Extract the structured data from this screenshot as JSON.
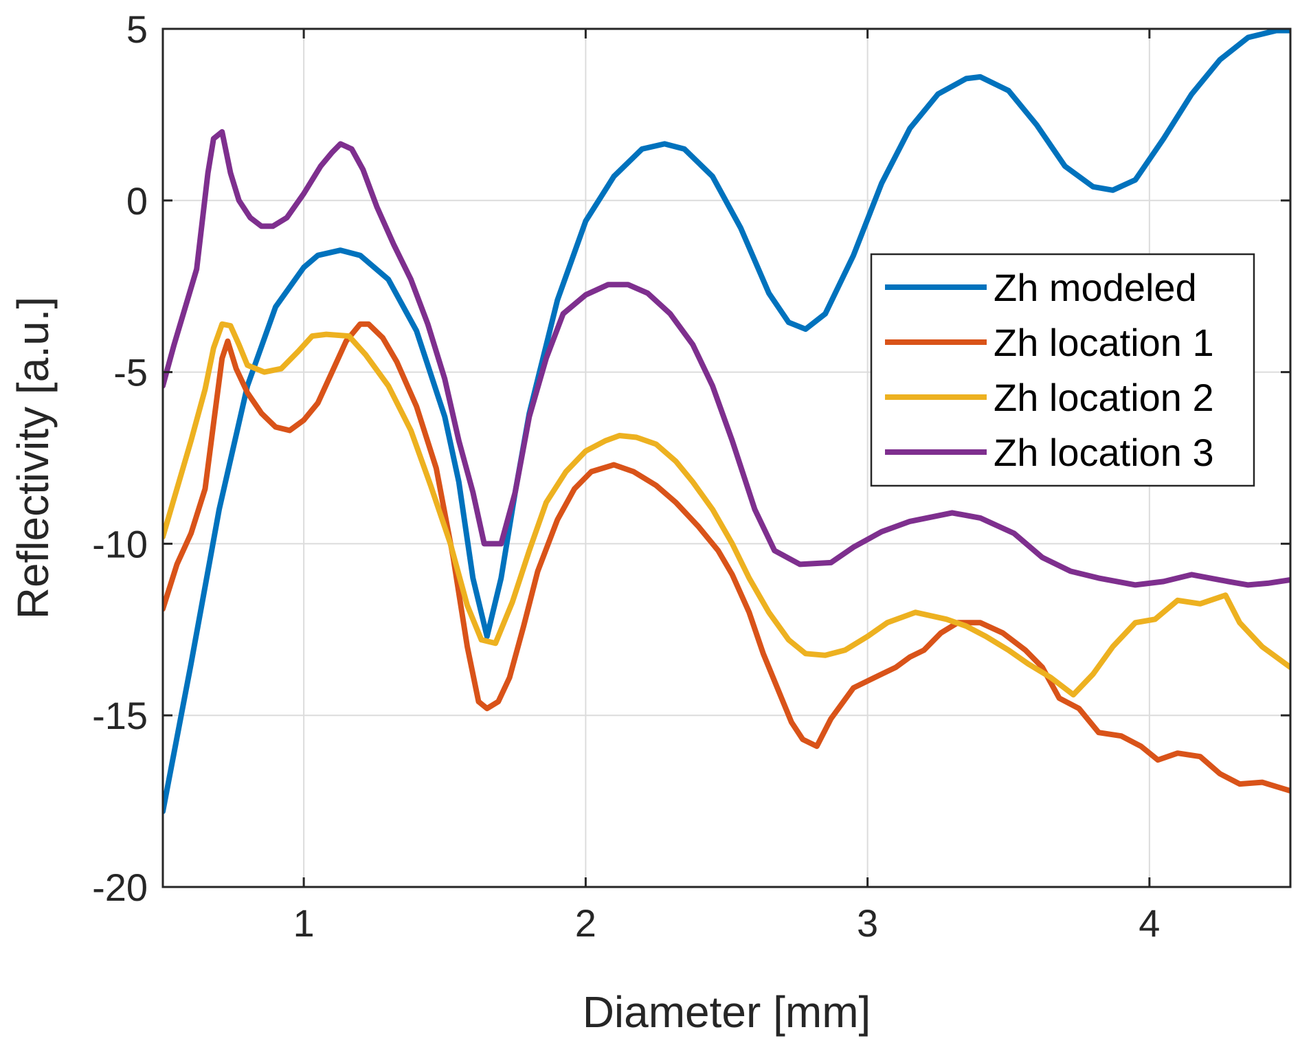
{
  "chart_data": {
    "type": "line",
    "xlabel": "Diameter [mm]",
    "ylabel": "Reflectivity [a.u.]",
    "xlim": [
      0.5,
      4.5
    ],
    "ylim": [
      -20,
      5
    ],
    "xticks": [
      1,
      2,
      3,
      4
    ],
    "yticks": [
      5,
      0,
      -5,
      -10,
      -15,
      -20
    ],
    "xtick_labels": [
      "1",
      "2",
      "3",
      "4"
    ],
    "ytick_labels": [
      "5",
      "0",
      "-5",
      "-10",
      "-15",
      "-20"
    ],
    "grid": true,
    "legend_position": "right",
    "series": [
      {
        "name": "Zh modeled",
        "color": "#0072BD",
        "points": [
          [
            0.5,
            -17.8
          ],
          [
            0.6,
            -13.5
          ],
          [
            0.7,
            -9.0
          ],
          [
            0.8,
            -5.4
          ],
          [
            0.9,
            -3.1
          ],
          [
            1.0,
            -1.95
          ],
          [
            1.05,
            -1.6
          ],
          [
            1.13,
            -1.45
          ],
          [
            1.2,
            -1.6
          ],
          [
            1.3,
            -2.3
          ],
          [
            1.4,
            -3.8
          ],
          [
            1.5,
            -6.3
          ],
          [
            1.55,
            -8.2
          ],
          [
            1.6,
            -11.0
          ],
          [
            1.65,
            -12.7
          ],
          [
            1.7,
            -11.0
          ],
          [
            1.75,
            -8.5
          ],
          [
            1.8,
            -6.2
          ],
          [
            1.9,
            -2.9
          ],
          [
            2.0,
            -0.6
          ],
          [
            2.1,
            0.7
          ],
          [
            2.2,
            1.5
          ],
          [
            2.28,
            1.65
          ],
          [
            2.35,
            1.5
          ],
          [
            2.45,
            0.7
          ],
          [
            2.55,
            -0.8
          ],
          [
            2.65,
            -2.7
          ],
          [
            2.72,
            -3.55
          ],
          [
            2.78,
            -3.75
          ],
          [
            2.85,
            -3.3
          ],
          [
            2.95,
            -1.6
          ],
          [
            3.05,
            0.5
          ],
          [
            3.15,
            2.1
          ],
          [
            3.25,
            3.1
          ],
          [
            3.35,
            3.55
          ],
          [
            3.4,
            3.6
          ],
          [
            3.5,
            3.2
          ],
          [
            3.6,
            2.2
          ],
          [
            3.7,
            1.0
          ],
          [
            3.8,
            0.4
          ],
          [
            3.87,
            0.3
          ],
          [
            3.95,
            0.6
          ],
          [
            4.05,
            1.8
          ],
          [
            4.15,
            3.1
          ],
          [
            4.25,
            4.1
          ],
          [
            4.35,
            4.75
          ],
          [
            4.45,
            4.95
          ],
          [
            4.5,
            4.95
          ]
        ]
      },
      {
        "name": "Zh location 1",
        "color": "#D95319",
        "points": [
          [
            0.5,
            -11.9
          ],
          [
            0.55,
            -10.6
          ],
          [
            0.6,
            -9.7
          ],
          [
            0.65,
            -8.4
          ],
          [
            0.68,
            -6.5
          ],
          [
            0.71,
            -4.6
          ],
          [
            0.73,
            -4.1
          ],
          [
            0.76,
            -4.9
          ],
          [
            0.8,
            -5.6
          ],
          [
            0.85,
            -6.2
          ],
          [
            0.9,
            -6.6
          ],
          [
            0.95,
            -6.7
          ],
          [
            1.0,
            -6.4
          ],
          [
            1.05,
            -5.9
          ],
          [
            1.1,
            -5.0
          ],
          [
            1.15,
            -4.1
          ],
          [
            1.2,
            -3.6
          ],
          [
            1.23,
            -3.6
          ],
          [
            1.28,
            -4.0
          ],
          [
            1.33,
            -4.7
          ],
          [
            1.4,
            -6.0
          ],
          [
            1.47,
            -7.8
          ],
          [
            1.53,
            -10.4
          ],
          [
            1.58,
            -13.0
          ],
          [
            1.62,
            -14.6
          ],
          [
            1.65,
            -14.8
          ],
          [
            1.69,
            -14.6
          ],
          [
            1.73,
            -13.9
          ],
          [
            1.78,
            -12.4
          ],
          [
            1.83,
            -10.8
          ],
          [
            1.9,
            -9.3
          ],
          [
            1.96,
            -8.4
          ],
          [
            2.02,
            -7.9
          ],
          [
            2.1,
            -7.7
          ],
          [
            2.17,
            -7.9
          ],
          [
            2.25,
            -8.3
          ],
          [
            2.32,
            -8.8
          ],
          [
            2.4,
            -9.5
          ],
          [
            2.47,
            -10.2
          ],
          [
            2.52,
            -10.9
          ],
          [
            2.58,
            -12.0
          ],
          [
            2.63,
            -13.2
          ],
          [
            2.68,
            -14.2
          ],
          [
            2.73,
            -15.2
          ],
          [
            2.77,
            -15.7
          ],
          [
            2.82,
            -15.9
          ],
          [
            2.87,
            -15.1
          ],
          [
            2.95,
            -14.2
          ],
          [
            3.05,
            -13.8
          ],
          [
            3.1,
            -13.6
          ],
          [
            3.15,
            -13.3
          ],
          [
            3.2,
            -13.1
          ],
          [
            3.26,
            -12.6
          ],
          [
            3.32,
            -12.3
          ],
          [
            3.4,
            -12.3
          ],
          [
            3.48,
            -12.6
          ],
          [
            3.56,
            -13.1
          ],
          [
            3.62,
            -13.6
          ],
          [
            3.68,
            -14.5
          ],
          [
            3.75,
            -14.8
          ],
          [
            3.82,
            -15.5
          ],
          [
            3.9,
            -15.6
          ],
          [
            3.97,
            -15.9
          ],
          [
            4.03,
            -16.3
          ],
          [
            4.1,
            -16.1
          ],
          [
            4.18,
            -16.2
          ],
          [
            4.25,
            -16.7
          ],
          [
            4.32,
            -17.0
          ],
          [
            4.4,
            -16.95
          ],
          [
            4.5,
            -17.2
          ]
        ]
      },
      {
        "name": "Zh location 2",
        "color": "#EDB120",
        "points": [
          [
            0.5,
            -9.8
          ],
          [
            0.55,
            -8.4
          ],
          [
            0.6,
            -7.0
          ],
          [
            0.65,
            -5.5
          ],
          [
            0.68,
            -4.3
          ],
          [
            0.71,
            -3.6
          ],
          [
            0.74,
            -3.65
          ],
          [
            0.77,
            -4.2
          ],
          [
            0.8,
            -4.8
          ],
          [
            0.86,
            -5.0
          ],
          [
            0.92,
            -4.9
          ],
          [
            0.98,
            -4.4
          ],
          [
            1.03,
            -3.95
          ],
          [
            1.08,
            -3.9
          ],
          [
            1.16,
            -3.95
          ],
          [
            1.22,
            -4.5
          ],
          [
            1.3,
            -5.4
          ],
          [
            1.38,
            -6.7
          ],
          [
            1.45,
            -8.3
          ],
          [
            1.52,
            -10.0
          ],
          [
            1.58,
            -11.8
          ],
          [
            1.63,
            -12.8
          ],
          [
            1.68,
            -12.9
          ],
          [
            1.74,
            -11.7
          ],
          [
            1.8,
            -10.2
          ],
          [
            1.86,
            -8.8
          ],
          [
            1.93,
            -7.9
          ],
          [
            2.0,
            -7.3
          ],
          [
            2.07,
            -7.0
          ],
          [
            2.12,
            -6.85
          ],
          [
            2.18,
            -6.9
          ],
          [
            2.25,
            -7.1
          ],
          [
            2.32,
            -7.6
          ],
          [
            2.38,
            -8.2
          ],
          [
            2.45,
            -9.0
          ],
          [
            2.52,
            -10.0
          ],
          [
            2.58,
            -11.0
          ],
          [
            2.65,
            -12.0
          ],
          [
            2.72,
            -12.8
          ],
          [
            2.78,
            -13.2
          ],
          [
            2.85,
            -13.25
          ],
          [
            2.92,
            -13.1
          ],
          [
            3.0,
            -12.7
          ],
          [
            3.07,
            -12.3
          ],
          [
            3.17,
            -12.0
          ],
          [
            3.28,
            -12.2
          ],
          [
            3.35,
            -12.4
          ],
          [
            3.42,
            -12.7
          ],
          [
            3.5,
            -13.1
          ],
          [
            3.57,
            -13.5
          ],
          [
            3.65,
            -13.9
          ],
          [
            3.73,
            -14.4
          ],
          [
            3.8,
            -13.8
          ],
          [
            3.87,
            -13.0
          ],
          [
            3.95,
            -12.3
          ],
          [
            4.02,
            -12.2
          ],
          [
            4.1,
            -11.65
          ],
          [
            4.18,
            -11.75
          ],
          [
            4.27,
            -11.5
          ],
          [
            4.32,
            -12.3
          ],
          [
            4.4,
            -13.0
          ],
          [
            4.5,
            -13.6
          ]
        ]
      },
      {
        "name": "Zh location 3",
        "color": "#7E2F8E",
        "points": [
          [
            0.5,
            -5.4
          ],
          [
            0.54,
            -4.2
          ],
          [
            0.58,
            -3.1
          ],
          [
            0.62,
            -2.0
          ],
          [
            0.64,
            -0.6
          ],
          [
            0.66,
            0.8
          ],
          [
            0.68,
            1.8
          ],
          [
            0.71,
            2.0
          ],
          [
            0.74,
            0.8
          ],
          [
            0.77,
            0.0
          ],
          [
            0.81,
            -0.5
          ],
          [
            0.85,
            -0.75
          ],
          [
            0.89,
            -0.75
          ],
          [
            0.94,
            -0.5
          ],
          [
            1.0,
            0.2
          ],
          [
            1.06,
            1.0
          ],
          [
            1.1,
            1.4
          ],
          [
            1.13,
            1.65
          ],
          [
            1.17,
            1.5
          ],
          [
            1.21,
            0.9
          ],
          [
            1.26,
            -0.2
          ],
          [
            1.32,
            -1.3
          ],
          [
            1.38,
            -2.3
          ],
          [
            1.44,
            -3.6
          ],
          [
            1.5,
            -5.2
          ],
          [
            1.55,
            -7.0
          ],
          [
            1.6,
            -8.5
          ],
          [
            1.64,
            -10.0
          ],
          [
            1.7,
            -10.0
          ],
          [
            1.75,
            -8.5
          ],
          [
            1.8,
            -6.3
          ],
          [
            1.86,
            -4.6
          ],
          [
            1.92,
            -3.3
          ],
          [
            2.0,
            -2.75
          ],
          [
            2.08,
            -2.45
          ],
          [
            2.15,
            -2.45
          ],
          [
            2.22,
            -2.7
          ],
          [
            2.3,
            -3.3
          ],
          [
            2.38,
            -4.2
          ],
          [
            2.45,
            -5.4
          ],
          [
            2.52,
            -7.0
          ],
          [
            2.6,
            -9.0
          ],
          [
            2.67,
            -10.2
          ],
          [
            2.76,
            -10.6
          ],
          [
            2.87,
            -10.55
          ],
          [
            2.95,
            -10.1
          ],
          [
            3.05,
            -9.65
          ],
          [
            3.15,
            -9.35
          ],
          [
            3.3,
            -9.1
          ],
          [
            3.4,
            -9.25
          ],
          [
            3.52,
            -9.7
          ],
          [
            3.62,
            -10.4
          ],
          [
            3.72,
            -10.8
          ],
          [
            3.82,
            -11.0
          ],
          [
            3.95,
            -11.2
          ],
          [
            4.05,
            -11.1
          ],
          [
            4.15,
            -10.9
          ],
          [
            4.28,
            -11.1
          ],
          [
            4.35,
            -11.2
          ],
          [
            4.42,
            -11.15
          ],
          [
            4.5,
            -11.05
          ]
        ]
      }
    ]
  }
}
